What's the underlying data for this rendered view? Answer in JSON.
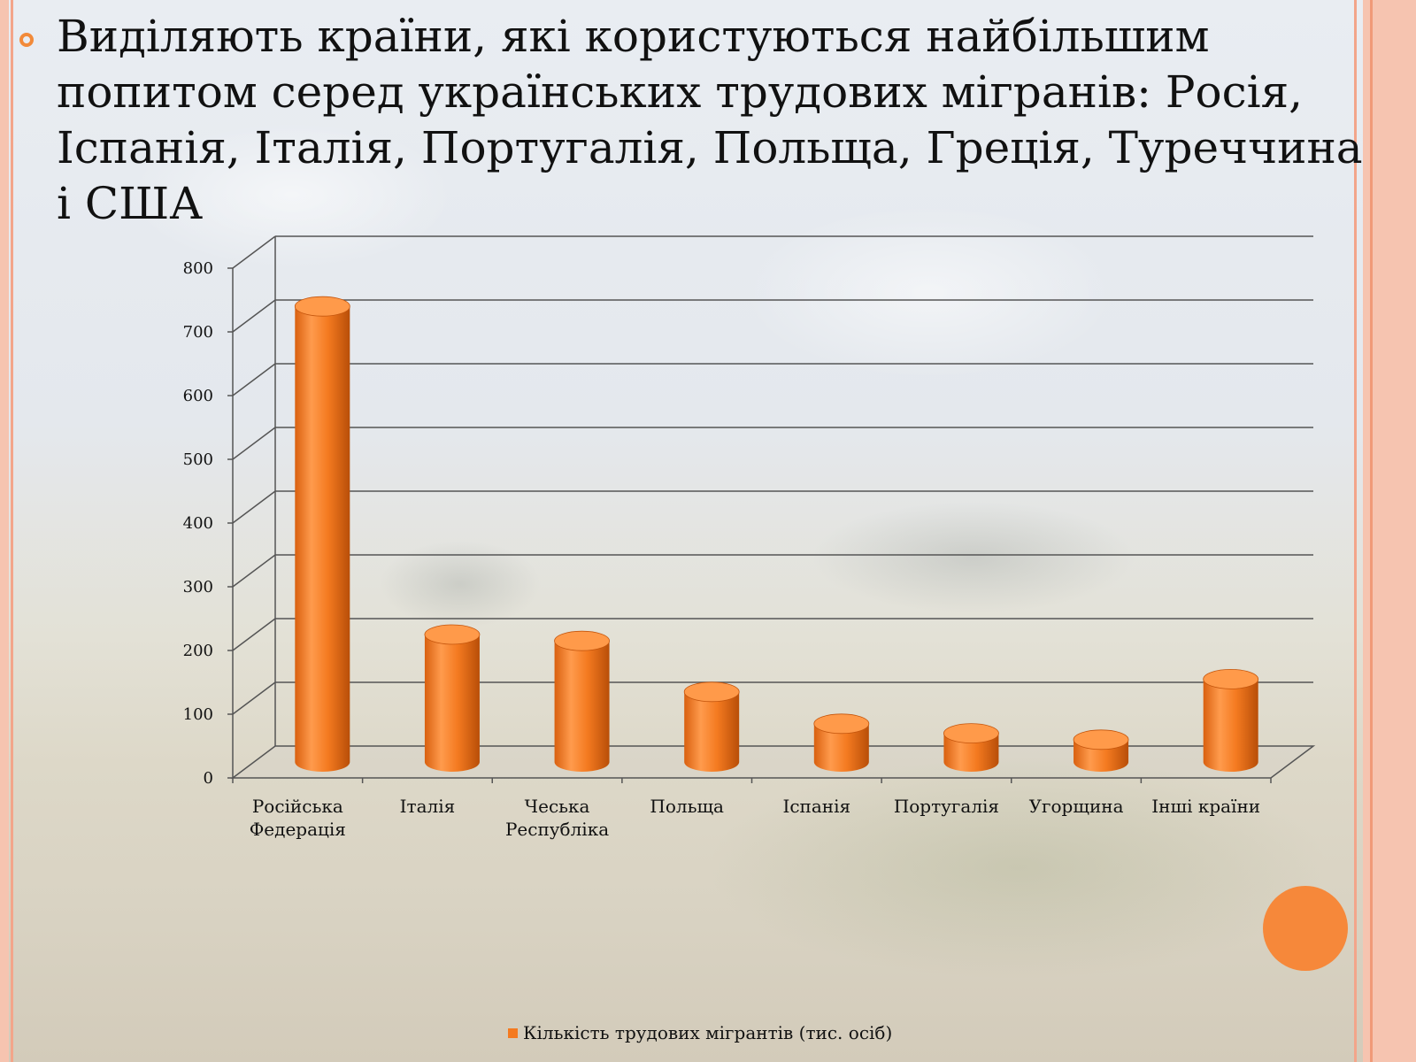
{
  "slide": {
    "title": "Виділяють країни, які користуються найбільшим попитом серед українських трудових мігранів: Росія, Іспанія, Італія, Португалія, Польща, Греція, Туреччина і США"
  },
  "colors": {
    "accent": "#f28a3a",
    "bar_fill": "#f47a20",
    "bar_top": "#ff9a4a",
    "bar_shadow": "#c4550c",
    "gridline": "#555555",
    "frame": "#f3a58a"
  },
  "chart_data": {
    "type": "bar",
    "style": "3d-cylinder",
    "categories": [
      [
        "Російська",
        "Федерація"
      ],
      [
        "Італія"
      ],
      [
        "Чеська",
        "Республіка"
      ],
      [
        "Польща"
      ],
      [
        "Іспанія"
      ],
      [
        "Португалія"
      ],
      [
        "Угорщина"
      ],
      [
        "Інші країни"
      ]
    ],
    "series": [
      {
        "name": "Кількість трудових мігрантів (тис. осіб)",
        "values": [
          715,
          200,
          190,
          110,
          60,
          45,
          35,
          130
        ]
      }
    ],
    "ylim": [
      0,
      800
    ],
    "yticks": [
      0,
      100,
      200,
      300,
      400,
      500,
      600,
      700,
      800
    ],
    "grid": true,
    "legend_position": "bottom"
  }
}
